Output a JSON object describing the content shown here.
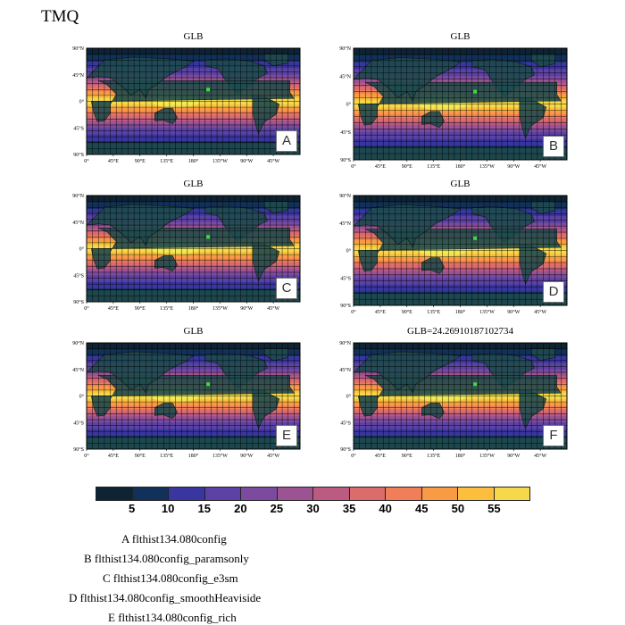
{
  "title": "TMQ",
  "colors": {
    "levels": [
      "#0e2333",
      "#11315b",
      "#3a36a0",
      "#5b42a4",
      "#7c4ba0",
      "#9c5391",
      "#bc5b81",
      "#dc6b6b",
      "#f07e58",
      "#f99a45",
      "#fbbe3d",
      "#f5d94a",
      "#eef85b"
    ],
    "ocean_base": "#2b2f6a",
    "land": "#1f4b4f",
    "marker": "#3adf3a"
  },
  "chart_data": {
    "type": "heatmap",
    "variable": "TMQ",
    "colorbar": {
      "levels": [
        5,
        10,
        15,
        20,
        25,
        30,
        35,
        40,
        45,
        50,
        55
      ]
    },
    "x_ticks": [
      "0°",
      "45°E",
      "90°E",
      "135°E",
      "180°",
      "135°W",
      "90°W",
      "45°W"
    ],
    "y_ticks": [
      "90°N",
      "45°N",
      "0°",
      "45°S",
      "90°S"
    ],
    "panels": [
      {
        "id": "A",
        "title": "GLB",
        "letter": "A"
      },
      {
        "id": "B",
        "title": "GLB",
        "letter": "B"
      },
      {
        "id": "C",
        "title": "GLB",
        "letter": "C"
      },
      {
        "id": "D",
        "title": "GLB",
        "letter": "D"
      },
      {
        "id": "E",
        "title": "GLB",
        "letter": "E"
      },
      {
        "id": "F",
        "title": "GLB=24.26910187102734",
        "letter": "F"
      }
    ]
  },
  "legend": [
    {
      "key": "A",
      "text": "A  flthist134.080config"
    },
    {
      "key": "B",
      "text": "B  flthist134.080config_paramsonly"
    },
    {
      "key": "C",
      "text": "C  flthist134.080config_e3sm"
    },
    {
      "key": "D",
      "text": "D  flthist134.080config_smoothHeaviside"
    },
    {
      "key": "E",
      "text": "E  flthist134.080config_rich"
    }
  ]
}
